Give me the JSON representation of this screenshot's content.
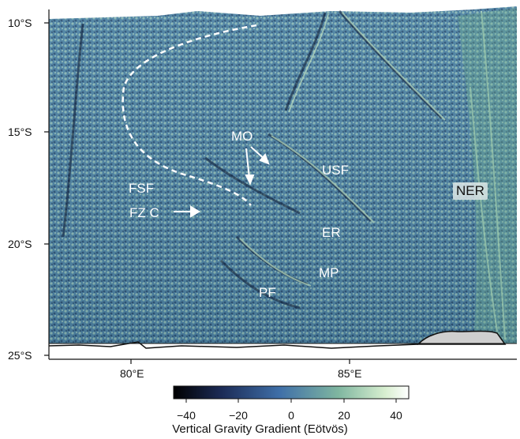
{
  "map": {
    "lat_labels": [
      "10°S",
      "15°S",
      "20°S",
      "25°S"
    ],
    "lon_labels": [
      "80°E",
      "85°E"
    ],
    "features": [
      {
        "key": "MO",
        "text": "MO"
      },
      {
        "key": "USF",
        "text": "USF"
      },
      {
        "key": "FSF",
        "text": "FSF"
      },
      {
        "key": "FZC",
        "text": "FZ C"
      },
      {
        "key": "ER",
        "text": "ER"
      },
      {
        "key": "MP",
        "text": "MP"
      },
      {
        "key": "PF",
        "text": "PF"
      },
      {
        "key": "NER",
        "text": "NER"
      }
    ],
    "surface_colors": {
      "low": "#0b0f2a",
      "mid": "#4f86a8",
      "high": "#cfe8c8",
      "ridge": "#6fbf7a"
    }
  },
  "colorbar": {
    "title": "Vertical Gravity Gradient (Eötvös)",
    "ticks": [
      "−40",
      "−20",
      "0",
      "20",
      "40"
    ],
    "range": [
      -45,
      45
    ],
    "colors": [
      "#000000",
      "#1b2a55",
      "#3f6fa8",
      "#7fb6a0",
      "#d8efd0",
      "#ffffff"
    ]
  }
}
